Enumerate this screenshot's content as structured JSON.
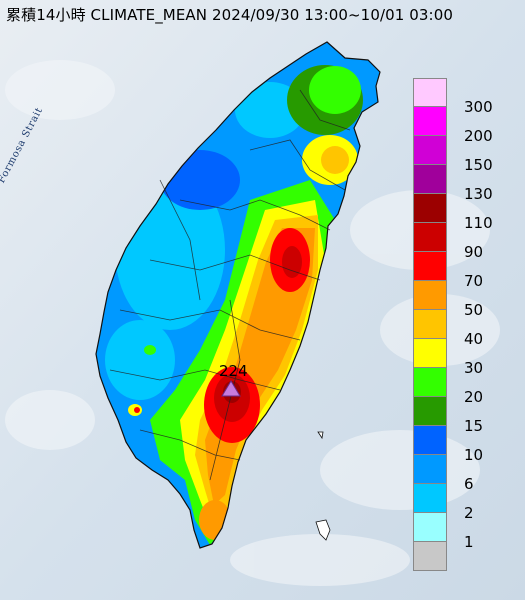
{
  "title": "累積14小時 CLIMATE_MEAN 2024/09/30 13:00~10/01 03:00",
  "strait_label": "Formosa Strait",
  "max_marker": {
    "value": "224",
    "icon": "triangle-icon",
    "color": "#c77cde"
  },
  "legend": {
    "colors": [
      "#ffc9ff",
      "#ff00ff",
      "#d000d6",
      "#a0009b",
      "#9c0000",
      "#cc0000",
      "#ff0000",
      "#ff9a00",
      "#ffc500",
      "#ffff00",
      "#33ff00",
      "#279a00",
      "#0063ff",
      "#0099ff",
      "#00c8ff",
      "#99ffff",
      "#c8c8c8"
    ],
    "labels": [
      "300",
      "200",
      "150",
      "130",
      "110",
      "90",
      "70",
      "50",
      "40",
      "30",
      "20",
      "15",
      "10",
      "6",
      "2",
      "1"
    ]
  }
}
